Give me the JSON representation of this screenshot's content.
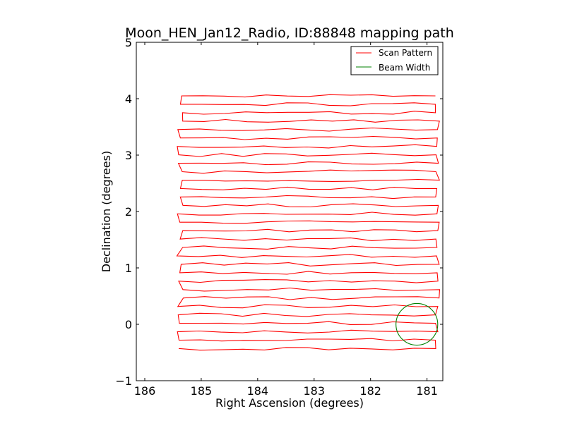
{
  "chart_data": {
    "type": "line",
    "title": "Moon_HEN_Jan12_Radio, ID:88848 mapping path",
    "xlabel": "Right Ascension (degrees)",
    "ylabel": "Declination (degrees)",
    "xlim": [
      186.15,
      180.72
    ],
    "ylim": [
      -1,
      5
    ],
    "xticks": [
      186,
      185,
      184,
      183,
      182,
      181
    ],
    "xtick_labels": [
      "186",
      "185",
      "184",
      "183",
      "182",
      "181"
    ],
    "yticks": [
      -1,
      0,
      1,
      2,
      3,
      4,
      5
    ],
    "ytick_labels": [
      "−1",
      "0",
      "1",
      "2",
      "3",
      "4",
      "5"
    ],
    "legend": {
      "position": "top-right",
      "entries": [
        "Scan Pattern",
        "Beam Width"
      ]
    },
    "colors": {
      "scan": "#ff0000",
      "beam": "#008000"
    },
    "scan_pattern": {
      "name": "Scan Pattern",
      "scan_lines": 31,
      "dec_start": -0.43,
      "dec_end": 4.05,
      "ra_min_approx": 185.35,
      "ra_max_approx": 180.8
    },
    "beam": {
      "name": "Beam Width",
      "center_ra": 181.18,
      "center_dec": 0.0,
      "radius_deg": 0.37
    }
  }
}
